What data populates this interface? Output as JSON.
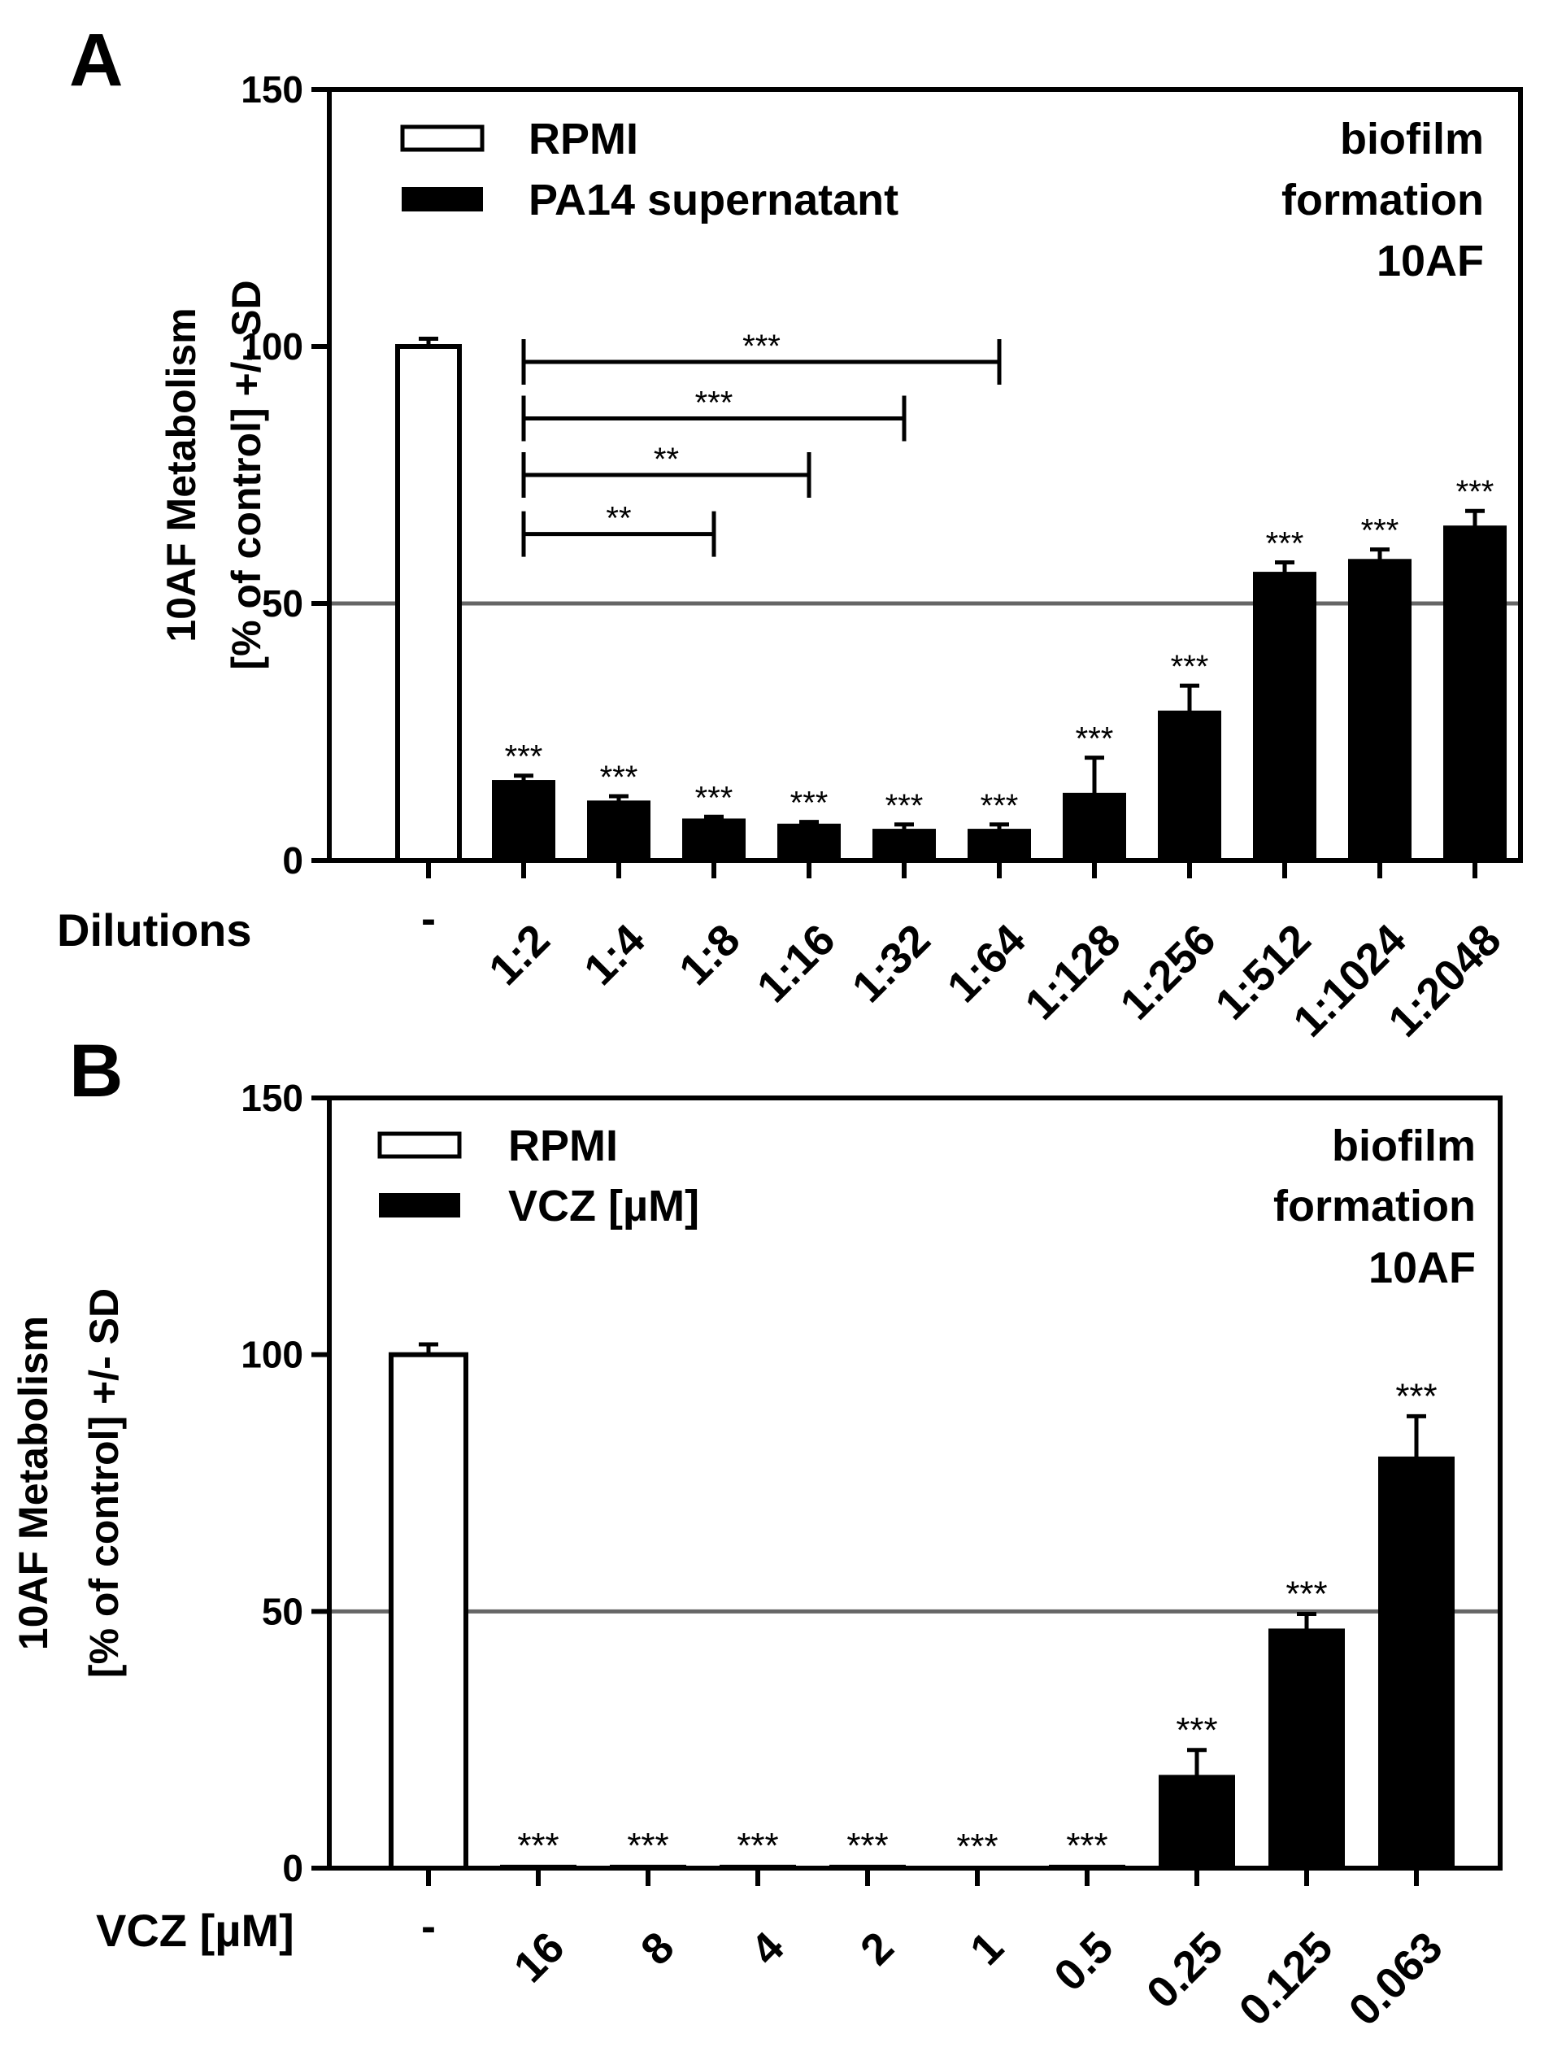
{
  "chart_data": [
    {
      "type": "bar",
      "panel_label": "A",
      "annotation": [
        "biofilm",
        "formation",
        "10AF"
      ],
      "ylabel": [
        "10AF Metabolism",
        "[% of control] +/- SD"
      ],
      "ylim": [
        0,
        150
      ],
      "yticks": [
        0,
        50,
        100,
        150
      ],
      "reference_line": 50,
      "xlabel_prefix": "Dilutions",
      "categories": [
        "-",
        "1:2",
        "1:4",
        "1:8",
        "1:16",
        "1:32",
        "1:64",
        "1:128",
        "1:256",
        "1:512",
        "1:1024",
        "1:2048"
      ],
      "values": [
        100,
        15.5,
        11.5,
        8,
        7,
        6,
        6,
        13,
        29,
        56,
        58.5,
        65
      ],
      "errors": [
        1.5,
        1,
        1,
        0.5,
        0.5,
        1,
        1,
        7,
        5,
        2,
        2,
        3
      ],
      "fills": [
        "open",
        "filled",
        "filled",
        "filled",
        "filled",
        "filled",
        "filled",
        "filled",
        "filled",
        "filled",
        "filled",
        "filled"
      ],
      "significance": [
        "",
        "***",
        "***",
        "***",
        "***",
        "***",
        "***",
        "***",
        "***",
        "***",
        "***",
        "***"
      ],
      "brackets": [
        {
          "from": "1:2",
          "to": "1:64",
          "y": 97,
          "label": "***"
        },
        {
          "from": "1:2",
          "to": "1:32",
          "y": 86,
          "label": "***"
        },
        {
          "from": "1:2",
          "to": "1:16",
          "y": 75,
          "label": "**"
        },
        {
          "from": "1:2",
          "to": "1:8",
          "y": 63.5,
          "label": "**"
        }
      ],
      "legend": [
        {
          "name": "RPMI",
          "fill": "open"
        },
        {
          "name": "PA14 supernatant",
          "fill": "filled"
        }
      ],
      "legend_placement": "top-left",
      "grid": false,
      "tick_rotation_deg": -45
    },
    {
      "type": "bar",
      "panel_label": "B",
      "annotation": [
        "biofilm",
        "formation",
        "10AF"
      ],
      "ylabel": [
        "10AF Metabolism",
        "[% of control] +/- SD"
      ],
      "ylim": [
        0,
        150
      ],
      "yticks": [
        0,
        50,
        100,
        150
      ],
      "reference_line": 50,
      "xlabel_prefix": "VCZ [µM]",
      "categories": [
        "-",
        "16",
        "8",
        "4",
        "2",
        "1",
        "0.5",
        "0.25",
        "0.125",
        "0.063"
      ],
      "values": [
        100,
        0.5,
        0.5,
        0.5,
        0.5,
        0.3,
        0.5,
        18,
        46.5,
        80
      ],
      "errors": [
        2,
        0,
        0,
        0,
        0,
        0,
        0,
        5,
        3,
        8
      ],
      "fills": [
        "open",
        "filled",
        "filled",
        "filled",
        "filled",
        "filled",
        "filled",
        "filled",
        "filled",
        "filled"
      ],
      "significance": [
        "",
        "***",
        "***",
        "***",
        "***",
        "***",
        "***",
        "***",
        "***",
        "***"
      ],
      "legend": [
        {
          "name": "RPMI",
          "fill": "open"
        },
        {
          "name": "VCZ [µM]",
          "fill": "filled"
        }
      ],
      "legend_placement": "top-left",
      "grid": false,
      "tick_rotation_deg": -45
    }
  ],
  "colors": {
    "bar_fill": "#000000",
    "open_fill": "#ffffff",
    "reference_line": "#666666"
  }
}
